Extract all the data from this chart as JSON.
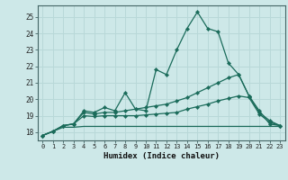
{
  "title": "",
  "xlabel": "Humidex (Indice chaleur)",
  "background_color": "#cde8e8",
  "grid_color": "#b8d8d8",
  "line_color": "#1a6b5a",
  "xlim": [
    -0.5,
    23.5
  ],
  "ylim": [
    17.5,
    25.7
  ],
  "yticks": [
    18,
    19,
    20,
    21,
    22,
    23,
    24,
    25
  ],
  "xticks": [
    0,
    1,
    2,
    3,
    4,
    5,
    6,
    7,
    8,
    9,
    10,
    11,
    12,
    13,
    14,
    15,
    16,
    17,
    18,
    19,
    20,
    21,
    22,
    23
  ],
  "series": [
    [
      17.8,
      18.05,
      18.4,
      18.5,
      19.3,
      19.2,
      19.5,
      19.3,
      20.4,
      19.4,
      19.3,
      21.8,
      21.5,
      23.0,
      24.3,
      25.3,
      24.3,
      24.1,
      22.2,
      21.5,
      20.2,
      19.3,
      18.5,
      18.4
    ],
    [
      17.8,
      18.05,
      18.4,
      18.5,
      19.2,
      19.1,
      19.2,
      19.2,
      19.3,
      19.4,
      19.5,
      19.6,
      19.7,
      19.9,
      20.1,
      20.4,
      20.7,
      21.0,
      21.3,
      21.5,
      20.2,
      19.2,
      18.7,
      18.4
    ],
    [
      17.8,
      18.05,
      18.4,
      18.5,
      19.0,
      18.95,
      19.0,
      19.0,
      19.0,
      19.0,
      19.05,
      19.1,
      19.15,
      19.2,
      19.4,
      19.55,
      19.7,
      19.9,
      20.05,
      20.2,
      20.1,
      19.1,
      18.6,
      18.4
    ],
    [
      17.8,
      18.05,
      18.3,
      18.3,
      18.35,
      18.35,
      18.35,
      18.35,
      18.35,
      18.35,
      18.35,
      18.35,
      18.35,
      18.35,
      18.35,
      18.35,
      18.35,
      18.35,
      18.35,
      18.35,
      18.35,
      18.35,
      18.35,
      18.35
    ]
  ]
}
